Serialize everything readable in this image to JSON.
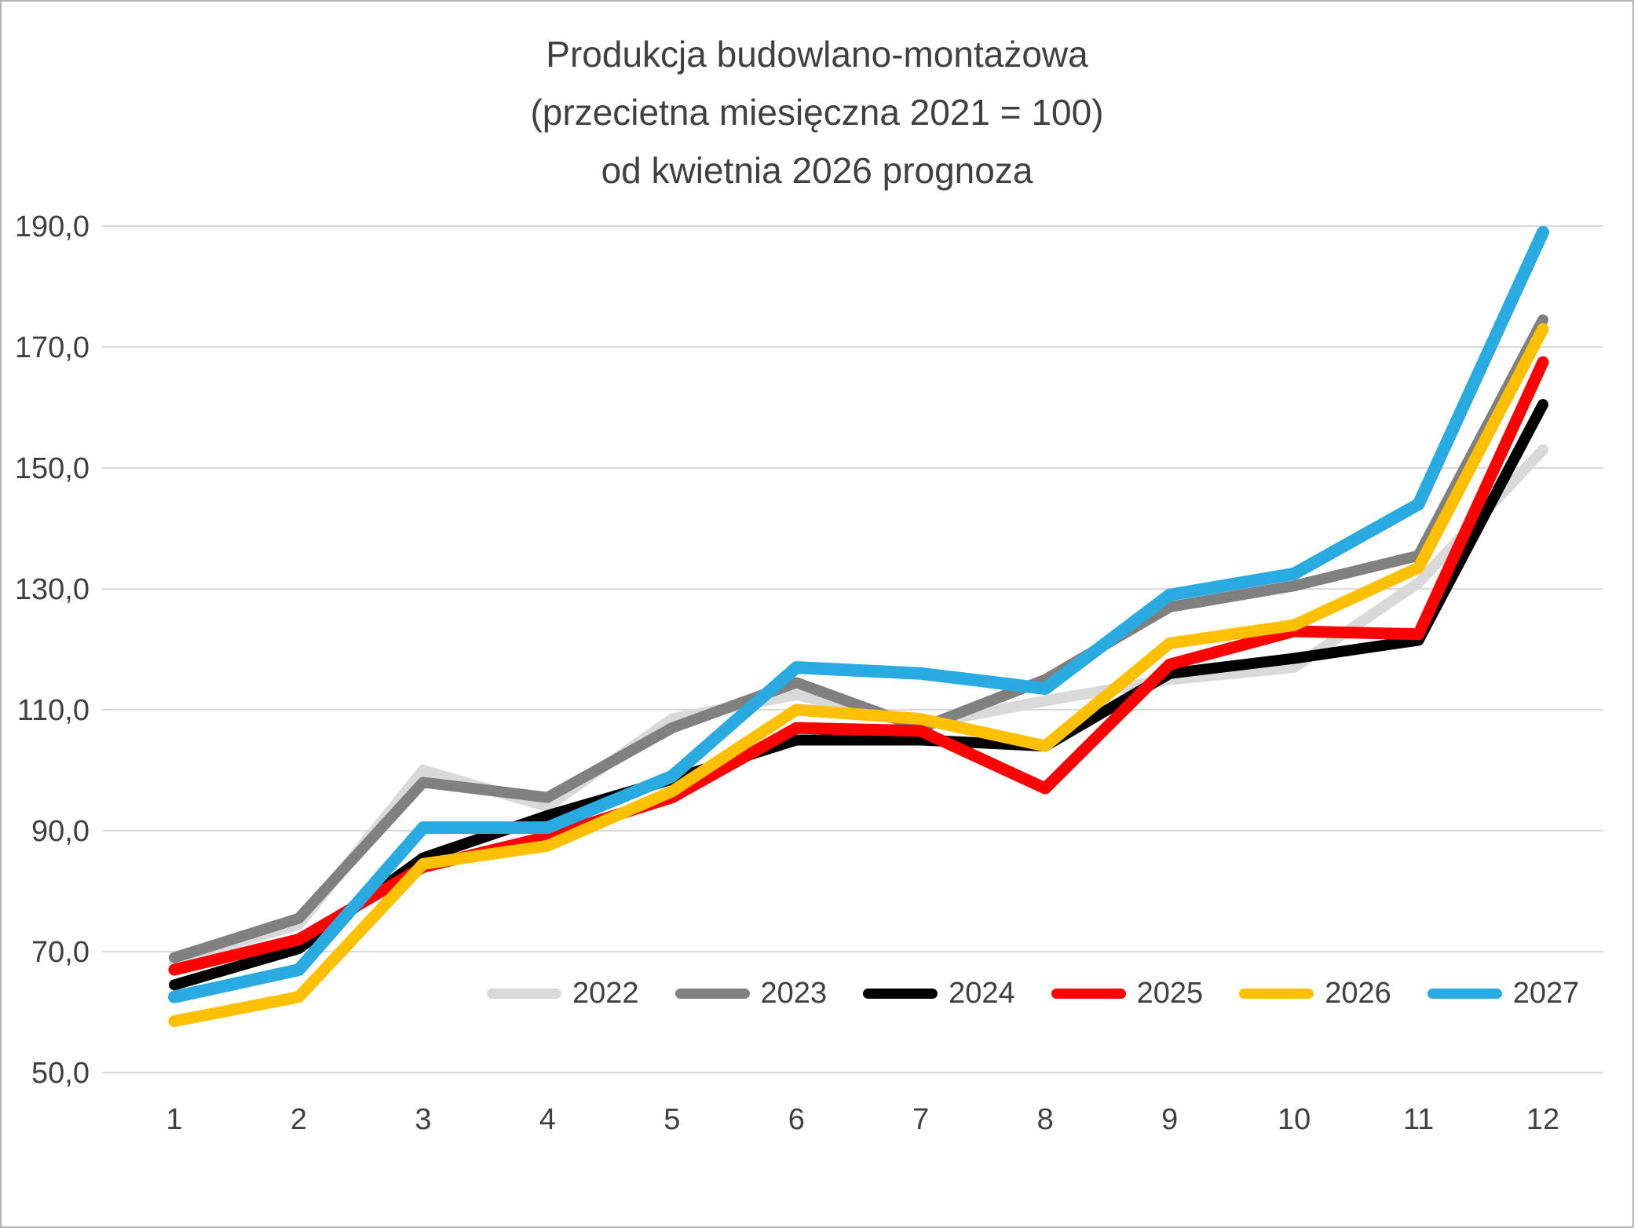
{
  "title": {
    "line1": "Produkcja budowlano-montażowa",
    "line2": "(przecietna miesięczna 2021 = 100)",
    "line3": "od kwietnia 2026 prognoza"
  },
  "axes": {
    "x_tick_labels": [
      "1",
      "2",
      "3",
      "4",
      "5",
      "6",
      "7",
      "8",
      "9",
      "10",
      "11",
      "12"
    ],
    "y_tick_labels": [
      "50,0",
      "70,0",
      "90,0",
      "110,0",
      "130,0",
      "150,0",
      "170,0",
      "190,0"
    ],
    "y_tick_values": [
      50,
      70,
      90,
      110,
      130,
      150,
      170,
      190
    ]
  },
  "style": {
    "text_color": "#404040",
    "gridline_color": "#d9d9d9",
    "background": "#ffffff"
  },
  "chart_data": {
    "type": "line",
    "title": "Produkcja budowlano-montażowa (przecietna miesięczna 2021 = 100) od kwietnia 2026 prognoza",
    "x": [
      1,
      2,
      3,
      4,
      5,
      6,
      7,
      8,
      9,
      10,
      11,
      12
    ],
    "xlabel": "",
    "ylabel": "",
    "ylim": [
      50,
      190
    ],
    "ytick_step": 20,
    "grid": "horizontal",
    "legend_position": "bottom-inside",
    "series": [
      {
        "name": "2022",
        "color": "#d9d9d9",
        "width": 14,
        "values": [
          68.5,
          74.5,
          100.0,
          94.0,
          108.5,
          112.5,
          107.5,
          111.5,
          115.0,
          117.0,
          131.0,
          153.0
        ]
      },
      {
        "name": "2023",
        "color": "#808080",
        "width": 14,
        "values": [
          69.0,
          75.5,
          98.0,
          95.5,
          107.0,
          114.5,
          107.0,
          115.0,
          127.0,
          130.5,
          135.5,
          174.5
        ]
      },
      {
        "name": "2024",
        "color": "#000000",
        "width": 14,
        "values": [
          64.5,
          70.5,
          85.5,
          92.5,
          98.5,
          105.0,
          105.0,
          104.0,
          116.0,
          118.5,
          121.5,
          160.5
        ]
      },
      {
        "name": "2025",
        "color": "#ff0000",
        "width": 15,
        "values": [
          67.0,
          72.0,
          84.0,
          89.0,
          95.5,
          107.0,
          106.5,
          97.0,
          117.5,
          123.0,
          122.5,
          167.5
        ]
      },
      {
        "name": "2026",
        "color": "#ffc000",
        "width": 15,
        "values": [
          58.5,
          62.5,
          84.5,
          87.5,
          96.5,
          110.0,
          108.5,
          104.0,
          121.0,
          124.0,
          133.5,
          173.0
        ]
      },
      {
        "name": "2027",
        "color": "#29abe2",
        "width": 16,
        "values": [
          62.5,
          67.0,
          90.5,
          90.5,
          99.0,
          117.0,
          116.0,
          113.5,
          129.0,
          132.5,
          144.0,
          189.0
        ]
      }
    ]
  }
}
